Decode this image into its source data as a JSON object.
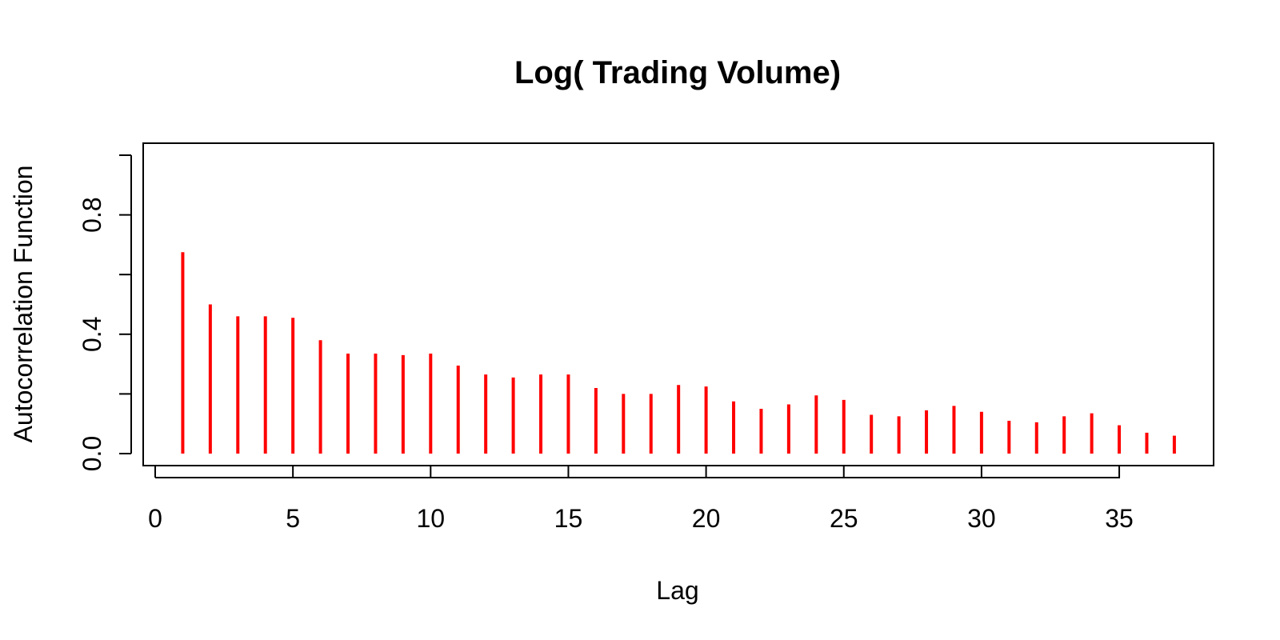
{
  "chart_data": {
    "type": "bar",
    "title": "Log( Trading Volume)",
    "xlabel": "Lag",
    "ylabel": "Autocorrelation Function",
    "xlim": [
      0,
      37
    ],
    "ylim": [
      0.0,
      1.0
    ],
    "x_ticks": [
      "0",
      "5",
      "10",
      "15",
      "20",
      "25",
      "30",
      "35"
    ],
    "x_tick_values": [
      0,
      5,
      10,
      15,
      20,
      25,
      30,
      35
    ],
    "y_ticks": [
      "0.0",
      "0.4",
      "0.8"
    ],
    "y_tick_values": [
      0.0,
      0.2,
      0.4,
      0.6,
      0.8,
      1.0
    ],
    "y_tick_labels": {
      "0": "0.0",
      "0.4": "0.4",
      "0.8": "0.8"
    },
    "x": [
      1,
      2,
      3,
      4,
      5,
      6,
      7,
      8,
      9,
      10,
      11,
      12,
      13,
      14,
      15,
      16,
      17,
      18,
      19,
      20,
      21,
      22,
      23,
      24,
      25,
      26,
      27,
      28,
      29,
      30,
      31,
      32,
      33,
      34,
      35,
      36,
      37
    ],
    "values": [
      0.675,
      0.5,
      0.46,
      0.46,
      0.455,
      0.38,
      0.335,
      0.335,
      0.33,
      0.335,
      0.295,
      0.265,
      0.255,
      0.265,
      0.265,
      0.22,
      0.2,
      0.2,
      0.23,
      0.225,
      0.175,
      0.15,
      0.165,
      0.195,
      0.18,
      0.13,
      0.125,
      0.145,
      0.16,
      0.14,
      0.11,
      0.105,
      0.125,
      0.135,
      0.095,
      0.07,
      0.06
    ],
    "color": "#ff0000",
    "grid": false,
    "legend": "none"
  }
}
